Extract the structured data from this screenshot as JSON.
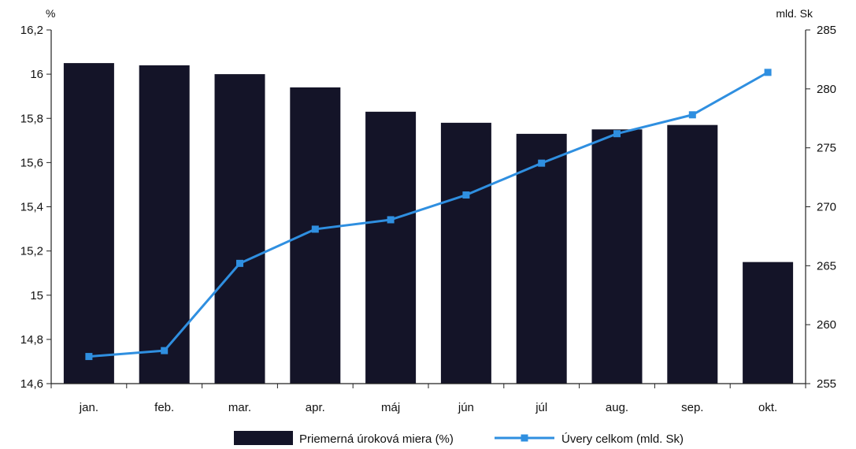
{
  "chart_data": {
    "type": "bar+line",
    "categories": [
      "jan.",
      "feb.",
      "mar.",
      "apr.",
      "máj",
      "jún",
      "júl",
      "aug.",
      "sep.",
      "okt."
    ],
    "left_axis": {
      "unit": "%",
      "min": 14.6,
      "max": 16.2,
      "ticks": [
        "14,6",
        "14,8",
        "15",
        "15,2",
        "15,4",
        "15,6",
        "15,8",
        "16",
        "16,2"
      ]
    },
    "right_axis": {
      "unit": "mld. Sk",
      "min": 255,
      "max": 285,
      "ticks": [
        "255",
        "260",
        "265",
        "270",
        "275",
        "280",
        "285"
      ]
    },
    "series": [
      {
        "name": "Priemerná úroková miera (%)",
        "kind": "bar",
        "axis": "left",
        "color": "#141428",
        "values": [
          16.05,
          16.04,
          16.0,
          15.94,
          15.83,
          15.78,
          15.73,
          15.75,
          15.77,
          15.15
        ]
      },
      {
        "name": "Úvery celkom (mld. Sk)",
        "kind": "line",
        "axis": "right",
        "color": "#2f8fe0",
        "values": [
          257.3,
          257.8,
          265.2,
          268.1,
          268.9,
          271.0,
          273.7,
          276.2,
          277.8,
          281.4
        ]
      }
    ],
    "grid": false,
    "legend": "bottom"
  }
}
